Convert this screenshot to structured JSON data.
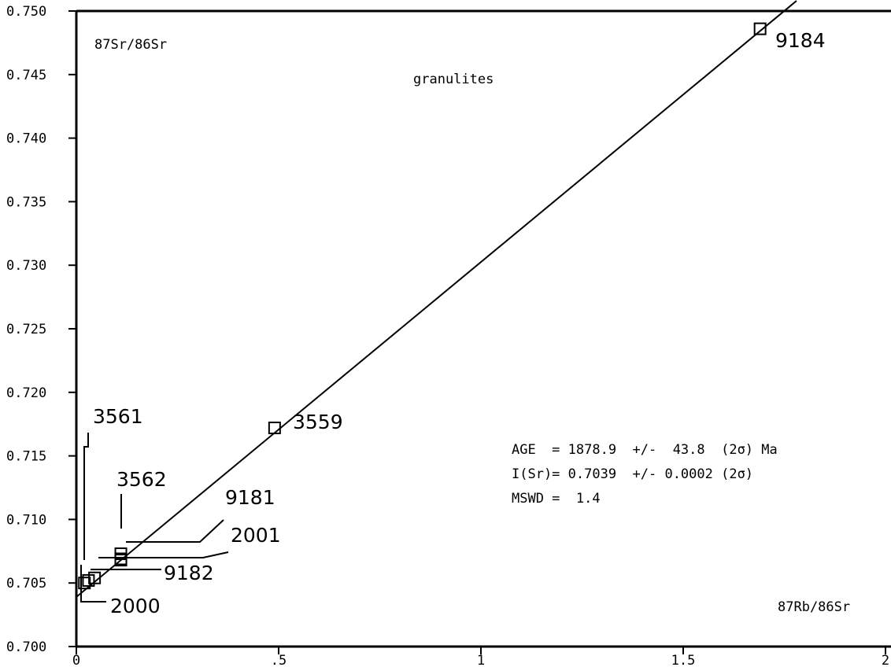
{
  "chart_data": {
    "type": "scatter",
    "title": "granulites",
    "xlabel": "87Rb/86Sr",
    "ylabel": "87Sr/86Sr",
    "xlim": [
      0,
      2
    ],
    "ylim": [
      0.7,
      0.75
    ],
    "x_ticks": [
      {
        "value": 0,
        "label": "0"
      },
      {
        "value": 0.5,
        "label": ".5"
      },
      {
        "value": 1,
        "label": "1"
      },
      {
        "value": 1.5,
        "label": "1.5"
      },
      {
        "value": 2,
        "label": "2"
      }
    ],
    "y_ticks": [
      {
        "value": 0.7,
        "label": "0.700"
      },
      {
        "value": 0.705,
        "label": "0.705"
      },
      {
        "value": 0.71,
        "label": "0.710"
      },
      {
        "value": 0.715,
        "label": "0.715"
      },
      {
        "value": 0.72,
        "label": "0.720"
      },
      {
        "value": 0.725,
        "label": "0.725"
      },
      {
        "value": 0.73,
        "label": "0.730"
      },
      {
        "value": 0.735,
        "label": "0.735"
      },
      {
        "value": 0.74,
        "label": "0.740"
      },
      {
        "value": 0.745,
        "label": "0.745"
      },
      {
        "value": 0.75,
        "label": "0.750"
      }
    ],
    "points": [
      {
        "label": "9184",
        "x": 1.69,
        "y": 0.7486
      },
      {
        "label": "3559",
        "x": 0.49,
        "y": 0.7172
      },
      {
        "label": "3562",
        "x": 0.11,
        "y": 0.7073
      },
      {
        "label": "3561",
        "x": 0.11,
        "y": 0.7069
      },
      {
        "label": "9181",
        "x": 0.11,
        "y": 0.7068
      },
      {
        "label": "2001",
        "x": 0.045,
        "y": 0.7054
      },
      {
        "label": "9182",
        "x": 0.03,
        "y": 0.7052
      },
      {
        "label": "2000",
        "x": 0.02,
        "y": 0.705
      }
    ],
    "isochron": {
      "x": [
        0,
        1.78
      ],
      "y": [
        0.7039,
        0.7508
      ]
    },
    "annotations": [
      "AGE  = 1878.9  +/-  43.8  (2σ) Ma",
      "I(Sr)= 0.7039  +/- 0.0002 (2σ)",
      "MSWD =  1.4"
    ]
  }
}
